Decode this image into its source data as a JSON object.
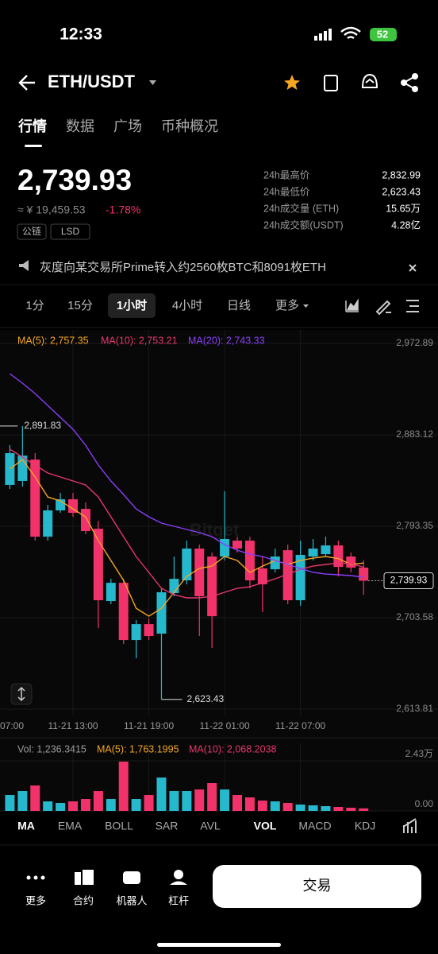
{
  "status": {
    "time": "12:33",
    "battery": "52"
  },
  "header": {
    "pair": "ETH/USDT"
  },
  "tabs": [
    {
      "label": "行情",
      "active": true
    },
    {
      "label": "数据",
      "active": false
    },
    {
      "label": "广场",
      "active": false
    },
    {
      "label": "币种概况",
      "active": false
    }
  ],
  "price": {
    "last": "2,739.93",
    "cny": "≈ ¥ 19,459.53",
    "change": "-1.78%",
    "tags": [
      "公链",
      "LSD"
    ]
  },
  "stats": [
    {
      "label": "24h最高价",
      "value": "2,832.99"
    },
    {
      "label": "24h最低价",
      "value": "2,623.43"
    },
    {
      "label": "24h成交量 (ETH)",
      "value": "15.65万"
    },
    {
      "label": "24h成交额(USDT)",
      "value": "4.28亿"
    }
  ],
  "notice": "灰度向某交易所Prime转入约2560枚BTC和8091枚ETH",
  "intervals": [
    {
      "label": "1分",
      "active": false
    },
    {
      "label": "15分",
      "active": false
    },
    {
      "label": "1小时",
      "active": true
    },
    {
      "label": "4小时",
      "active": false
    },
    {
      "label": "日线",
      "active": false
    },
    {
      "label": "更多",
      "active": false
    }
  ],
  "chart_data": [
    {
      "type": "candlestick",
      "watermark": "Bitget",
      "up_color": "#26b8cc",
      "down_color": "#f2336b",
      "x": [
        8,
        9,
        10,
        11,
        12,
        13,
        14,
        15,
        16,
        17,
        18,
        19,
        20,
        21,
        22,
        23,
        24,
        25,
        26,
        27,
        28,
        29,
        30,
        31,
        32,
        33,
        34,
        35,
        36
      ],
      "open": [
        2834.0,
        2837.9,
        2858.9,
        2783.2,
        2809.0,
        2819.9,
        2810.5,
        2791.0,
        2720.0,
        2737.9,
        2681.7,
        2697.3,
        2688.0,
        2727.8,
        2740.3,
        2771.5,
        2763.7,
        2763.7,
        2779.3,
        2779.3,
        2752.0,
        2751.2,
        2769.9,
        2720.8,
        2763.7,
        2766.0,
        2774.6,
        2763.7,
        2752.8
      ],
      "high": [
        2873.0,
        2891.83,
        2865.2,
        2814.4,
        2826.1,
        2826.1,
        2816.8,
        2798.8,
        2741.8,
        2741.8,
        2701.2,
        2702.8,
        2732.5,
        2763.7,
        2779.3,
        2775.4,
        2767.6,
        2827.7,
        2783.2,
        2783.2,
        2763.7,
        2771.5,
        2775.4,
        2779.3,
        2780.9,
        2783.2,
        2779.3,
        2767.6,
        2759.8
      ],
      "low": [
        2830.0,
        2832.4,
        2779.3,
        2779.3,
        2806.6,
        2802.7,
        2785.6,
        2693.4,
        2716.9,
        2677.8,
        2663.8,
        2681.7,
        2623.43,
        2724.7,
        2736.4,
        2685.6,
        2673.9,
        2759.8,
        2767.6,
        2732.5,
        2709.0,
        2748.1,
        2716.9,
        2715.3,
        2759.8,
        2763.7,
        2744.2,
        2748.1,
        2726.2
      ],
      "close": [
        2865.2,
        2862.8,
        2783.2,
        2809.0,
        2819.9,
        2806.6,
        2788.7,
        2720.8,
        2737.9,
        2681.7,
        2697.3,
        2685.6,
        2728.6,
        2741.8,
        2771.5,
        2724.7,
        2705.1,
        2780.9,
        2771.5,
        2740.3,
        2736.4,
        2763.7,
        2720.8,
        2765.3,
        2771.5,
        2774.6,
        2753.5,
        2752.8,
        2739.93
      ],
      "series": [
        {
          "label": "MA(5): 2,757.35",
          "color": "#f5a623",
          "values": [
            2849.6,
            2858.9,
            2841.8,
            2822.2,
            2818.3,
            2810.5,
            2802.7,
            2779.3,
            2759.8,
            2740.3,
            2712.9,
            2705.1,
            2712.9,
            2728.6,
            2744.2,
            2752.0,
            2754.3,
            2763.7,
            2759.8,
            2748.1,
            2754.3,
            2759.8,
            2755.9,
            2759.8,
            2762.1,
            2763.7,
            2761.6,
            2755.9,
            2757.35
          ]
        },
        {
          "label": "MA(10): 2,753.21",
          "color": "#e8376e",
          "values": [
            2869.1,
            2861.3,
            2853.5,
            2845.7,
            2841.8,
            2837.9,
            2834.0,
            2822.2,
            2802.7,
            2783.2,
            2763.7,
            2748.1,
            2732.5,
            2726.2,
            2723.1,
            2723.1,
            2724.7,
            2728.6,
            2732.5,
            2734.0,
            2737.9,
            2741.8,
            2746.5,
            2751.2,
            2754.3,
            2755.9,
            2757.4,
            2756.7,
            2753.21
          ]
        },
        {
          "label": "MA(20): 2,743.33",
          "color": "#8a3ffc",
          "values": [
            2943.2,
            2933.9,
            2923.7,
            2912.0,
            2900.3,
            2888.6,
            2873.0,
            2853.5,
            2837.9,
            2824.6,
            2810.5,
            2802.7,
            2796.5,
            2793.4,
            2790.3,
            2787.2,
            2783.2,
            2775.4,
            2769.9,
            2766.0,
            2763.7,
            2759.8,
            2755.9,
            2752.0,
            2748.1,
            2746.5,
            2745.8,
            2745.0,
            2743.33
          ]
        }
      ],
      "max_label": "2,891.83",
      "min_label": "2,623.43",
      "last_label": "2,739.93",
      "xlim": [
        7.22,
        41.89
      ],
      "xticks": [
        {
          "value": 7,
          "label": "07:00"
        },
        {
          "value": 13,
          "label": "11-21 13:00"
        },
        {
          "value": 19,
          "label": "11-21 19:00"
        },
        {
          "value": 25,
          "label": "11-22 01:00"
        },
        {
          "value": 31,
          "label": "11-22 07:00"
        }
      ],
      "ylim": [
        2607.6,
        2986.2
      ],
      "yticks": [
        {
          "value": 2972.89,
          "label": "2,972.89"
        },
        {
          "value": 2883.12,
          "label": "2,883.12"
        },
        {
          "value": 2793.35,
          "label": "2,793.35"
        },
        {
          "value": 2703.58,
          "label": "2,703.58"
        },
        {
          "value": 2613.81,
          "label": "2,613.81"
        }
      ]
    },
    {
      "type": "bar",
      "legend": [
        {
          "text": "Vol: 1,236.3415",
          "color": "#9a9a9a"
        },
        {
          "text": "MA(5): 1,763.1995",
          "color": "#f5a623"
        },
        {
          "text": "MA(10): 2,068.2038",
          "color": "#e8376e"
        }
      ],
      "x": [
        8,
        9,
        10,
        11,
        12,
        13,
        14,
        15,
        16,
        17,
        18,
        19,
        20,
        21,
        22,
        23,
        24,
        25,
        26,
        27,
        28,
        29,
        30,
        31,
        32,
        33,
        34,
        35,
        36
      ],
      "values": [
        7714,
        9643,
        12343,
        4629,
        3857,
        4629,
        5786,
        9643,
        5786,
        23914,
        5786,
        7714,
        16200,
        9643,
        9643,
        10414,
        13500,
        10414,
        7714,
        6557,
        5014,
        4629,
        3857,
        3086,
        2700,
        2314,
        1929,
        1543,
        1236.3415
      ],
      "ylim": [
        0,
        32800
      ],
      "yticks": [
        {
          "value": 0,
          "label": "0.00"
        },
        {
          "value": 24300,
          "label": "2.43万"
        }
      ]
    }
  ],
  "indicators": [
    {
      "label": "MA",
      "active": true
    },
    {
      "label": "EMA",
      "active": false
    },
    {
      "label": "BOLL",
      "active": false
    },
    {
      "label": "SAR",
      "active": false
    },
    {
      "label": "AVL",
      "active": false
    },
    {
      "label": "VOL",
      "active": true
    },
    {
      "label": "MACD",
      "active": false
    },
    {
      "label": "KDJ",
      "active": false
    }
  ],
  "nav": [
    "更多",
    "合约",
    "机器人",
    "杠杆"
  ],
  "trade_button": "交易"
}
